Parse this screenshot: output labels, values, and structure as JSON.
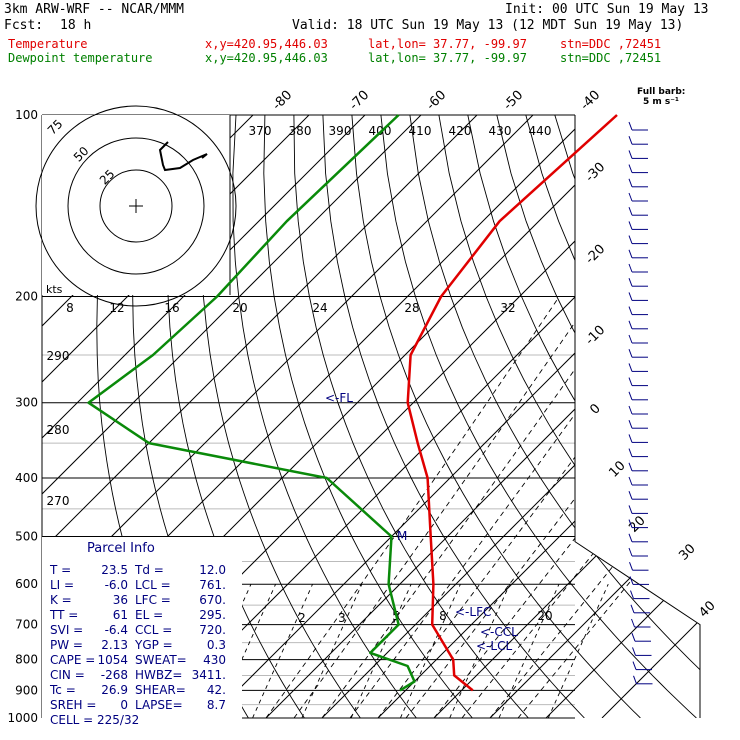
{
  "header": {
    "model": "3km ARW-WRF -- NCAR/MMM",
    "init": "Init: 00 UTC Sun 19 May 13",
    "fcst_label": "Fcst:",
    "fcst_value": "18 h",
    "valid": "Valid: 18 UTC Sun 19 May 13 (12 MDT Sun 19 May 13)",
    "temp_line": {
      "name": "Temperature",
      "xy": "x,y=420.95,446.03",
      "latlon": "lat,lon= 37.77, -99.97",
      "stn": "stn=DDC ,72451"
    },
    "dew_line": {
      "name": "Dewpoint temperature",
      "xy": "x,y=420.95,446.03",
      "latlon": "lat,lon= 37.77, -99.97",
      "stn": "stn=DDC ,72451"
    }
  },
  "colors": {
    "temperature": "#e00000",
    "dewpoint": "#0a8a0a",
    "hodograph": "#000000",
    "annotation": "#000080",
    "grid": "#000000",
    "light_grid": "#bbbbbb"
  },
  "legend": {
    "full_barb": "Full barb:",
    "full_barb_value": "5 m s⁻¹"
  },
  "hodograph": {
    "unit": "kts",
    "ring_labels": [
      "75",
      "50",
      "25"
    ]
  },
  "chart_data": {
    "type": "line",
    "title": "3km ARW-WRF -- NCAR/MMM",
    "pressure_levels": [
      "100",
      "200",
      "300",
      "400",
      "500",
      "600",
      "700",
      "800",
      "900",
      "1000"
    ],
    "theta_labels": [
      "370",
      "380",
      "390",
      "400",
      "410",
      "420",
      "430",
      "440"
    ],
    "mixing_ratio_labels_top": [
      "8",
      "12",
      "16",
      "20",
      "24",
      "28",
      "32"
    ],
    "mixing_ratio_labels_low": [
      "2",
      "3",
      "5",
      "8",
      "20"
    ],
    "left_theta_labels": [
      "290",
      "280",
      "270"
    ],
    "right_temp_labels": [
      "-30",
      "-20",
      "-10",
      "0",
      "10",
      "20",
      "30",
      "40"
    ],
    "top_temp_labels": [
      "-80",
      "-70",
      "-60",
      "-50",
      "-40"
    ],
    "series": [
      {
        "name": "Temperature",
        "points": [
          [
            100,
            -55
          ],
          [
            150,
            -57
          ],
          [
            200,
            -54
          ],
          [
            250,
            -49
          ],
          [
            300,
            -41
          ],
          [
            350,
            -32
          ],
          [
            400,
            -24
          ],
          [
            500,
            -13
          ],
          [
            600,
            -4
          ],
          [
            700,
            3
          ],
          [
            800,
            13
          ],
          [
            850,
            16
          ],
          [
            900,
            22
          ]
        ]
      },
      {
        "name": "Dewpoint temperature",
        "points": [
          [
            100,
            -94
          ],
          [
            150,
            -95
          ],
          [
            200,
            -94
          ],
          [
            250,
            -95
          ],
          [
            300,
            -98
          ],
          [
            350,
            -80
          ],
          [
            400,
            -42
          ],
          [
            500,
            -20
          ],
          [
            600,
            -12
          ],
          [
            700,
            -3
          ],
          [
            780,
            -3
          ],
          [
            820,
            6
          ],
          [
            870,
            10
          ],
          [
            900,
            9
          ]
        ]
      }
    ],
    "annotations": [
      "<-FL",
      "<-LFC",
      "<-CCL",
      "<-LCL",
      "M"
    ],
    "hodograph_path": [
      [
        168,
        142
      ],
      [
        160,
        150
      ],
      [
        163,
        165
      ],
      [
        165,
        170
      ],
      [
        180,
        168
      ],
      [
        193,
        160
      ],
      [
        207,
        154
      ],
      [
        202,
        158
      ]
    ],
    "wind_barbs": {
      "count": 40,
      "note": "barbs along right edge"
    }
  },
  "parcel_info": {
    "title": "Parcel Info",
    "rows": [
      [
        "T  =",
        "23.5",
        "Td =",
        "12.0"
      ],
      [
        "LI =",
        "-6.0",
        "LCL =",
        "761."
      ],
      [
        "K  =",
        "36",
        "LFC =",
        "670."
      ],
      [
        "TT =",
        "61",
        "EL  =",
        "295."
      ],
      [
        "SVI =",
        "-6.4",
        "CCL =",
        "720."
      ],
      [
        "PW  =",
        "2.13",
        "YGP =",
        "0.3"
      ],
      [
        "CAPE =",
        "1054",
        "SWEAT=",
        "430"
      ],
      [
        "CIN  =",
        "-268",
        "HWBZ=",
        "3411."
      ],
      [
        "Tc   =",
        "26.9",
        "SHEAR=",
        "42."
      ],
      [
        "SREH =",
        "0",
        "LAPSE=",
        "8.7"
      ],
      [
        "CELL = 225/32",
        "",
        "",
        ""
      ]
    ]
  }
}
